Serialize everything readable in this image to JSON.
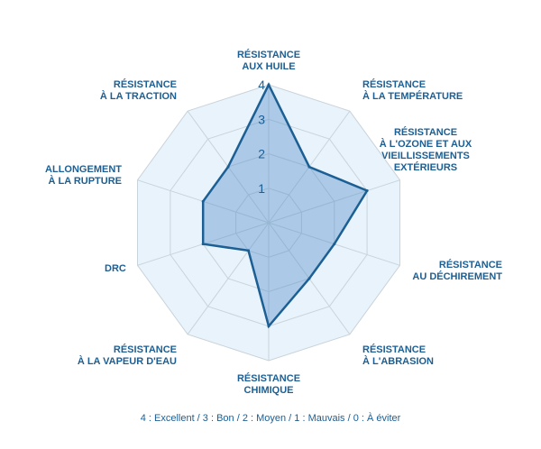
{
  "chart_data": {
    "type": "radar",
    "axes": [
      "RÉSISTANCE\nAUX HUILE",
      "RÉSISTANCE\nÀ LA TEMPÉRATURE",
      "RÉSISTANCE\nÀ L'OZONE ET AUX\nVIEILLISSEMENTS\nEXTÉRIEURS",
      "RÉSISTANCE\nAU DÉCHIREMENT",
      "RÉSISTANCE\nÀ L'ABRASION",
      "RÉSISTANCE\nCHIMIQUE",
      "RÉSISTANCE\nÀ LA VAPEUR D'EAU",
      "DRC",
      "ALLONGEMENT\nÀ LA RUPTURE",
      "RÉSISTANCE\nÀ LA TRACTION"
    ],
    "values": [
      4,
      2,
      3,
      2,
      2,
      3,
      1,
      2,
      2,
      2
    ],
    "rlim": [
      0,
      4
    ],
    "ticks": [
      "1",
      "2",
      "3",
      "4"
    ],
    "legend": "4 : Excellent / 3 : Bon / 2 :  Moyen / 1 : Mauvais / 0 : À éviter",
    "colors": {
      "fill": "#4a89c8",
      "stroke": "#1b5f94",
      "background": "#e8f3fb",
      "grid": "#c9d3da",
      "text": "#1b5f94"
    }
  }
}
